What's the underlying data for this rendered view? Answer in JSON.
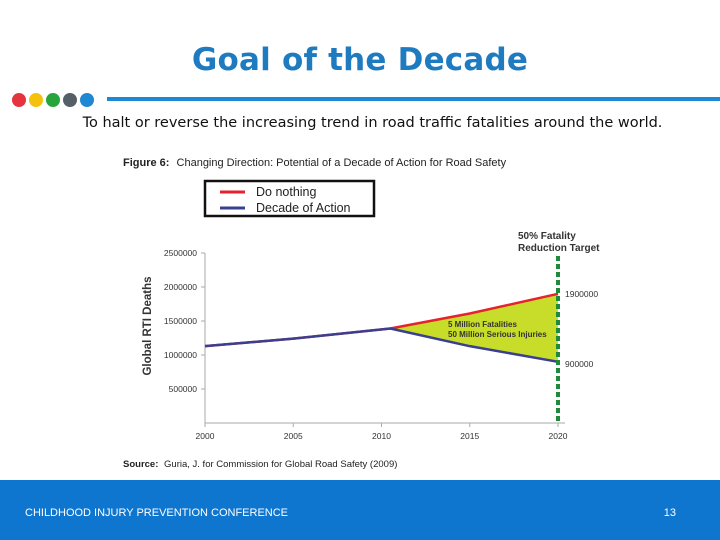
{
  "slide": {
    "title": "Goal of the Decade",
    "subtitle": "To halt or reverse the increasing trend in road traffic fatalities around the world.",
    "footer": "CHILDHOOD INJURY PREVENTION CONFERENCE",
    "page_number": "13"
  },
  "colors": {
    "accent_dots": [
      "#e5343e",
      "#f4c20d",
      "#27a53c",
      "#555f68",
      "#1e88d2"
    ],
    "rule": "#1e88d2",
    "title": "#1f7bc0",
    "footer_bg": "#0f76d0"
  },
  "chart_data": {
    "type": "line",
    "title_label": "Figure 6:",
    "title": "Changing Direction: Potential of a Decade of Action for Road Safety",
    "ylabel": "Global RTI Deaths",
    "xlabel": "",
    "xlim": [
      2000,
      2020
    ],
    "ylim": [
      0,
      2500000
    ],
    "x_ticks": [
      "2000",
      "2005",
      "2010",
      "2015",
      "2020"
    ],
    "y_ticks": [
      {
        "value": 500000,
        "label": "500000"
      },
      {
        "value": 1000000,
        "label": "1000000"
      },
      {
        "value": 1500000,
        "label": "1500000"
      },
      {
        "value": 2000000,
        "label": "2000000"
      },
      {
        "value": 2500000,
        "label": "2500000"
      }
    ],
    "series": [
      {
        "name": "Do nothing",
        "color": "#e5222e",
        "x": [
          2000,
          2005,
          2010.5,
          2015,
          2020
        ],
        "y": [
          1130000,
          1240000,
          1390000,
          1610000,
          1900000
        ]
      },
      {
        "name": "Decade of Action",
        "color": "#3a3f8f",
        "x": [
          2000,
          2005,
          2010.5,
          2015,
          2020
        ],
        "y": [
          1130000,
          1240000,
          1390000,
          1130000,
          900000
        ]
      }
    ],
    "shaded_region": {
      "from_x": 2010.5,
      "to_x": 2020,
      "color": "#c8dc2a"
    },
    "target_line": {
      "x": 2020,
      "label": [
        "50% Fatality",
        "Reduction Target"
      ],
      "color": "#1f8a3a"
    },
    "end_labels": [
      {
        "series": "Do nothing",
        "text": "1900000"
      },
      {
        "series": "Decade of Action",
        "text": "900000"
      }
    ],
    "annotation": [
      "5 Million Fatalities",
      "50 Million Serious Injuries"
    ],
    "source_label": "Source:",
    "source_text": "Guria, J. for Commission for Global Road Safety (2009)"
  }
}
